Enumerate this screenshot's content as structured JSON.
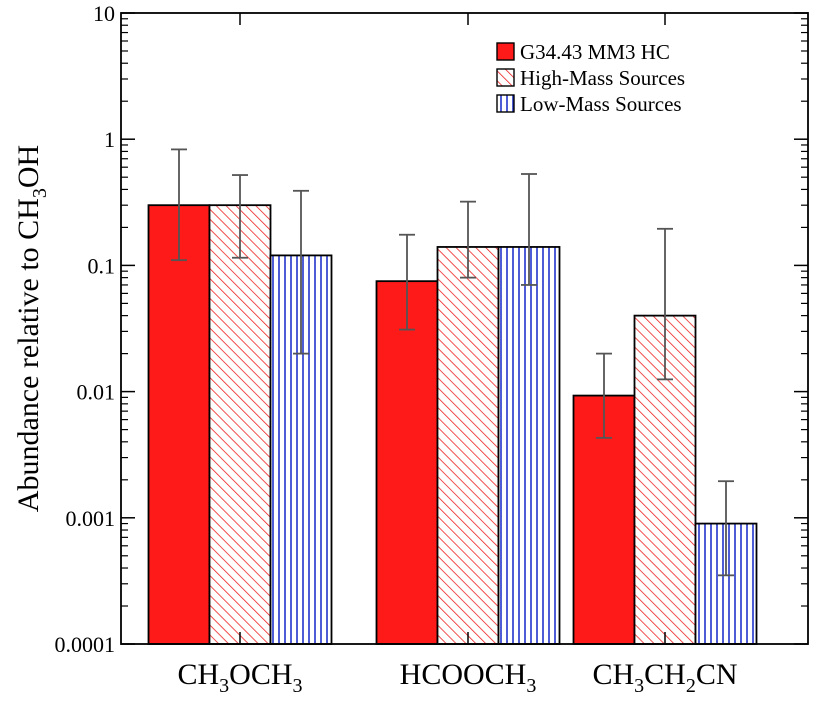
{
  "chart_data": {
    "type": "bar",
    "scale": "log",
    "ylabel": "Abundance relative to CH3OH",
    "ylabel_parts": {
      "main": "Abundance relative to CH",
      "sub": "3",
      "tail": "OH"
    },
    "ylim": [
      0.0001,
      10
    ],
    "yticks": [
      {
        "value": 10,
        "label": "10"
      },
      {
        "value": 1,
        "label": "1"
      },
      {
        "value": 0.1,
        "label": "0.1"
      },
      {
        "value": 0.01,
        "label": "0.01"
      },
      {
        "value": 0.001,
        "label": "0.001"
      },
      {
        "value": 0.0001,
        "label": "0.0001"
      }
    ],
    "categories": [
      "CH3OCH3",
      "HCOOCH3",
      "CH3CH2CN"
    ],
    "category_labels": [
      [
        [
          "CH",
          ""
        ],
        [
          "3",
          "sub"
        ],
        [
          "OCH",
          ""
        ],
        [
          "3",
          "sub"
        ]
      ],
      [
        [
          "HCOOCH",
          ""
        ],
        [
          "3",
          "sub"
        ]
      ],
      [
        [
          "CH",
          ""
        ],
        [
          "3",
          "sub"
        ],
        [
          "CH",
          ""
        ],
        [
          "2",
          "sub"
        ],
        [
          "CN",
          ""
        ]
      ]
    ],
    "series": [
      {
        "name": "G34.43 MM3 HC",
        "fill": "#ff1a1a",
        "pattern": "solid",
        "values": [
          0.3,
          0.075,
          0.0093
        ],
        "err_low": [
          0.11,
          0.031,
          0.0043
        ],
        "err_high": [
          0.83,
          0.175,
          0.02
        ]
      },
      {
        "name": "High-Mass Sources",
        "fill": "#ff3333",
        "pattern": "hatch",
        "values": [
          0.3,
          0.14,
          0.04
        ],
        "err_low": [
          0.115,
          0.08,
          0.0125
        ],
        "err_high": [
          0.52,
          0.32,
          0.195
        ]
      },
      {
        "name": "Low-Mass Sources",
        "fill": "#2233cc",
        "pattern": "vertical",
        "values": [
          0.12,
          0.14,
          0.0009
        ],
        "err_low": [
          0.02,
          0.07,
          0.00035
        ],
        "err_high": [
          0.39,
          0.53,
          0.00195
        ]
      }
    ],
    "legend_position": "top-right",
    "grid": false,
    "error_bar_color": "#555555"
  }
}
